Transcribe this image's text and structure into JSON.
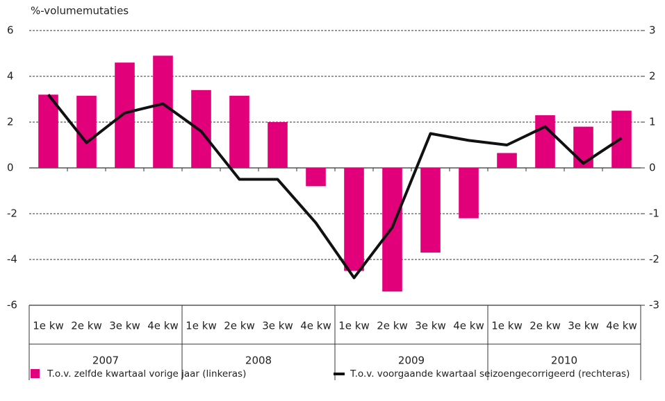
{
  "chart_data": {
    "type": "bar-line",
    "y_axis_title": "%-volumemutaties",
    "categories": [
      "1e kw",
      "2e kw",
      "3e kw",
      "4e kw",
      "1e kw",
      "2e kw",
      "3e kw",
      "4e kw",
      "1e kw",
      "2e kw",
      "3e kw",
      "4e kw",
      "1e kw",
      "2e kw",
      "3e kw",
      "4e kw"
    ],
    "groups": [
      "2007",
      "2008",
      "2009",
      "2010"
    ],
    "series": [
      {
        "name": "T.o.v. zelfde kwartaal vorige jaar (linkeras)",
        "type": "bar",
        "color": "#e2007a",
        "axis": "y",
        "values": [
          3.2,
          3.15,
          4.6,
          4.9,
          3.4,
          3.15,
          2.0,
          -0.8,
          -4.5,
          -5.4,
          -3.7,
          -2.2,
          0.65,
          2.3,
          1.8,
          2.5
        ]
      },
      {
        "name": "T.o.v. voorgaande kwartaal seizoengecorrigeerd (rechteras)",
        "type": "line",
        "color": "#111111",
        "axis": "y2",
        "values": [
          1.6,
          0.55,
          1.2,
          1.4,
          0.8,
          -0.25,
          -0.25,
          -1.2,
          -2.4,
          -1.3,
          0.75,
          0.6,
          0.5,
          0.9,
          0.1,
          0.65
        ]
      }
    ],
    "ylim": [
      -6,
      6
    ],
    "yticks": [
      -6,
      -4,
      -2,
      0,
      2,
      4,
      6
    ],
    "y2lim": [
      -3,
      3
    ],
    "y2ticks": [
      -3,
      -2,
      -1,
      0,
      1,
      2,
      3
    ],
    "grid": true
  }
}
